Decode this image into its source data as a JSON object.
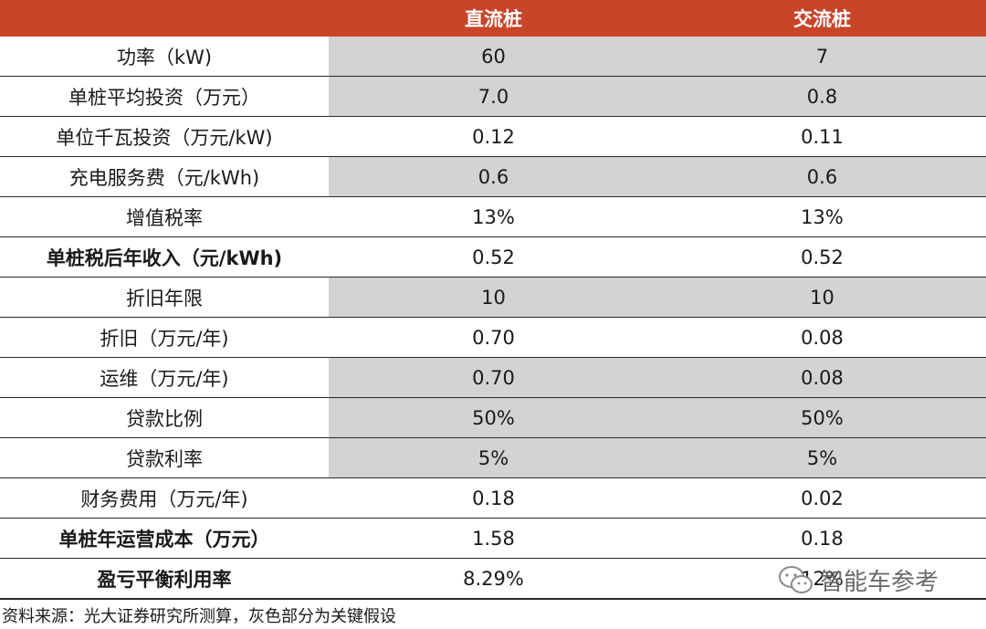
{
  "table": {
    "headers": [
      "",
      "直流桩",
      "交流桩"
    ],
    "rows": [
      {
        "label": "功率（kW)",
        "dc": "60",
        "ac": "7",
        "gray": true,
        "bold": false
      },
      {
        "label": "单桩平均投资（万元）",
        "dc": "7.0",
        "ac": "0.8",
        "gray": true,
        "bold": false
      },
      {
        "label": "单位千瓦投资（万元/kW)",
        "dc": "0.12",
        "ac": "0.11",
        "gray": false,
        "bold": false
      },
      {
        "label": "充电服务费（元/kWh)",
        "dc": "0.6",
        "ac": "0.6",
        "gray": true,
        "bold": false
      },
      {
        "label": "增值税率",
        "dc": "13%",
        "ac": "13%",
        "gray": false,
        "bold": false
      },
      {
        "label": "单桩税后年收入（元/kWh)",
        "dc": "0.52",
        "ac": "0.52",
        "gray": false,
        "bold": true
      },
      {
        "label": "折旧年限",
        "dc": "10",
        "ac": "10",
        "gray": true,
        "bold": false
      },
      {
        "label": "折旧（万元/年)",
        "dc": "0.70",
        "ac": "0.08",
        "gray": false,
        "bold": false
      },
      {
        "label": "运维（万元/年)",
        "dc": "0.70",
        "ac": "0.08",
        "gray": true,
        "bold": false
      },
      {
        "label": "贷款比例",
        "dc": "50%",
        "ac": "50%",
        "gray": true,
        "bold": false
      },
      {
        "label": "贷款利率",
        "dc": "5%",
        "ac": "5%",
        "gray": true,
        "bold": false
      },
      {
        "label": "财务费用（万元/年)",
        "dc": "0.18",
        "ac": "0.02",
        "gray": false,
        "bold": false
      },
      {
        "label": "单桩年运营成本（万元）",
        "dc": "1.58",
        "ac": "0.18",
        "gray": false,
        "bold": true
      },
      {
        "label": "盈亏平衡利用率",
        "dc": "8.29%",
        "ac": "12%",
        "gray": false,
        "bold": true
      }
    ]
  },
  "footer": "资料来源：光大证券研究所测算，灰色部分为关键假设",
  "watermark": "智能车参考",
  "colors": {
    "header_bg": "#c8452a",
    "gray_cell": "#d3d3d3",
    "header_text": "#ffffff"
  }
}
